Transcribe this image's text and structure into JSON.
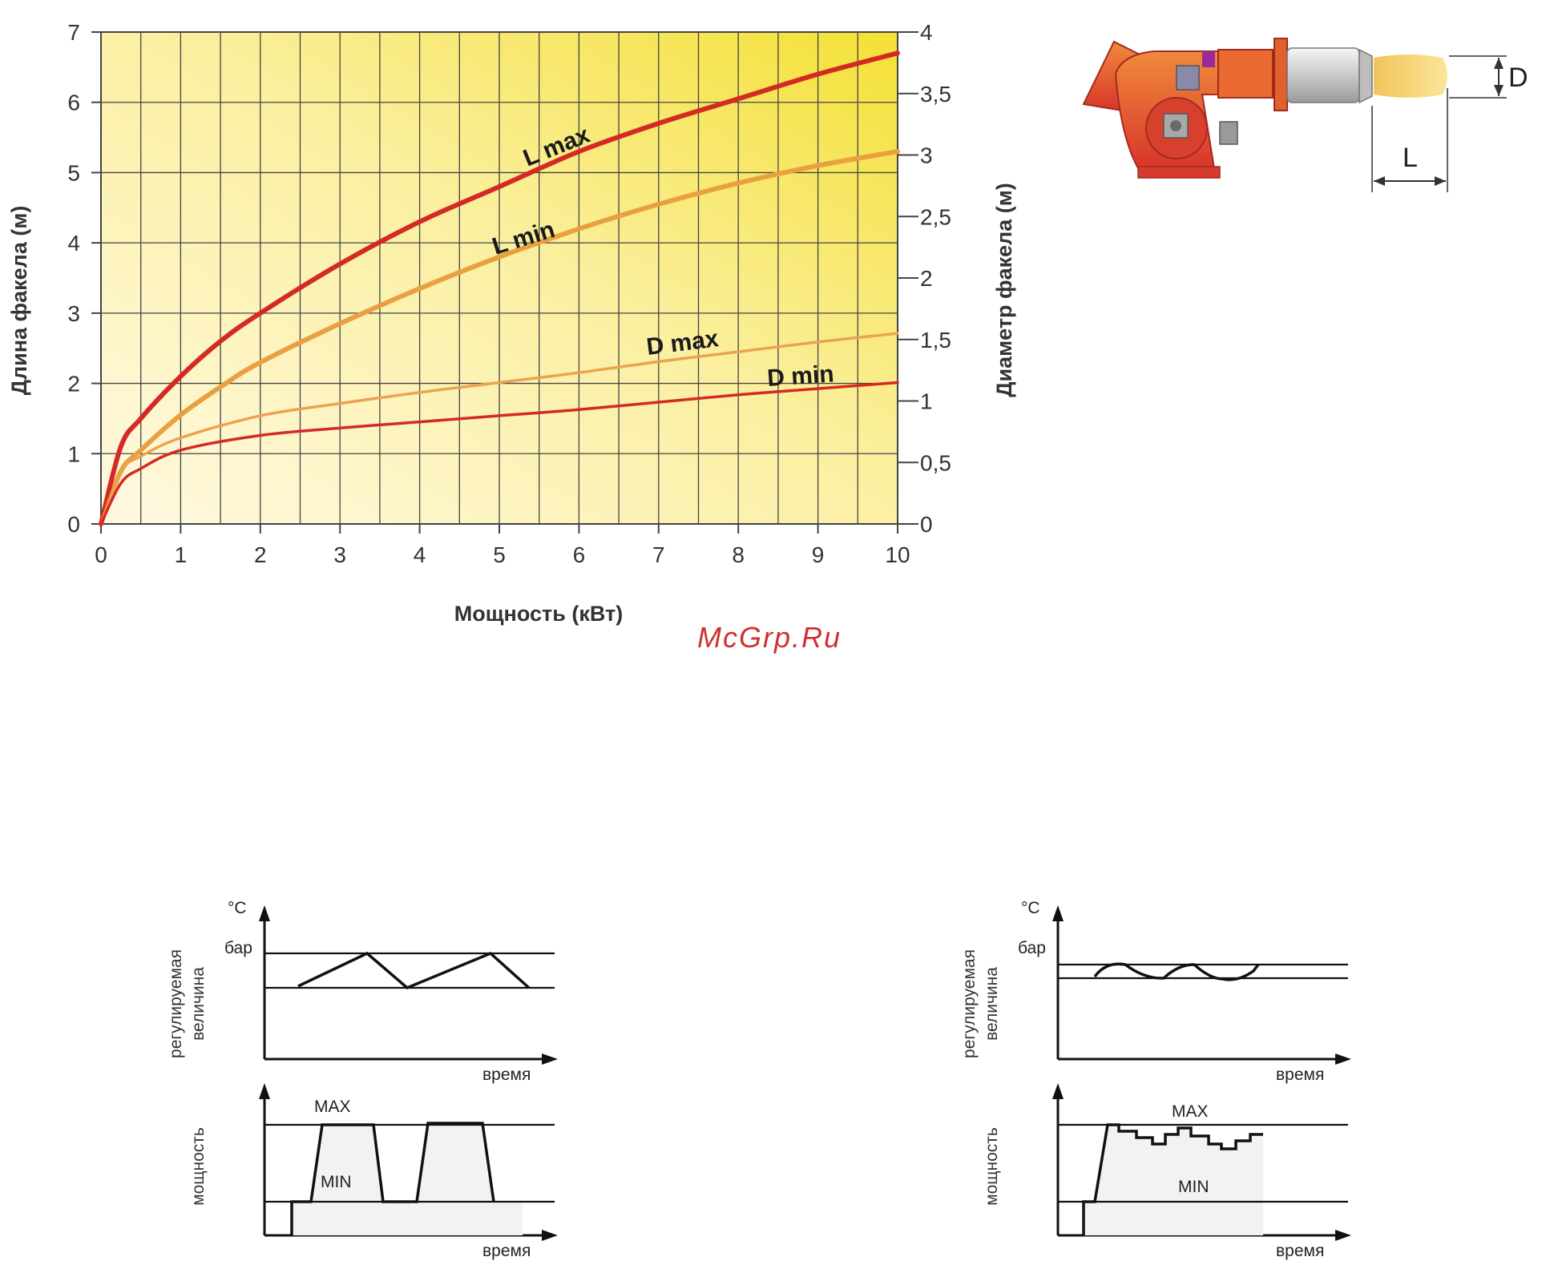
{
  "chart_data": {
    "type": "line",
    "xlabel": "Мощность (кВт)",
    "ylabel_left": "Длина факела (м)",
    "ylabel_right": "Диаметр факела (м)",
    "xlim": [
      0,
      10
    ],
    "ylim_left": [
      0,
      7
    ],
    "ylim_right": [
      0,
      4
    ],
    "x_ticks": [
      "0",
      "1",
      "2",
      "3",
      "4",
      "5",
      "6",
      "7",
      "8",
      "9",
      "10"
    ],
    "y_left_ticks": [
      "0",
      "1",
      "2",
      "3",
      "4",
      "5",
      "6",
      "7"
    ],
    "y_right_ticks": [
      "0",
      "0,5",
      "1",
      "1,5",
      "2",
      "2,5",
      "3",
      "3,5",
      "4"
    ],
    "grid": true,
    "series": [
      {
        "name": "L max",
        "axis": "left",
        "color": "#d42a24",
        "x": [
          0,
          0.25,
          0.5,
          1,
          1.5,
          2,
          3,
          4,
          5,
          6,
          7,
          8,
          9,
          10
        ],
        "y": [
          0,
          1.1,
          1.5,
          2.1,
          2.6,
          3.0,
          3.7,
          4.3,
          4.8,
          5.3,
          5.7,
          6.05,
          6.4,
          6.7
        ]
      },
      {
        "name": "L min",
        "axis": "left",
        "color": "#e9a040",
        "x": [
          0,
          0.25,
          0.5,
          1,
          1.5,
          2,
          3,
          4,
          5,
          6,
          7,
          8,
          9,
          10
        ],
        "y": [
          0,
          0.75,
          1.05,
          1.55,
          1.95,
          2.3,
          2.85,
          3.35,
          3.8,
          4.2,
          4.55,
          4.85,
          5.1,
          5.3
        ]
      },
      {
        "name": "D max",
        "axis": "right",
        "color": "#eba350",
        "x": [
          0,
          0.25,
          0.5,
          1,
          2,
          3,
          4,
          5,
          6,
          7,
          8,
          9,
          10
        ],
        "y": [
          0,
          0.43,
          0.55,
          0.7,
          0.88,
          0.98,
          1.07,
          1.15,
          1.23,
          1.32,
          1.4,
          1.48,
          1.55
        ]
      },
      {
        "name": "D min",
        "axis": "right",
        "color": "#d42a24",
        "x": [
          0,
          0.25,
          0.5,
          1,
          2,
          3,
          4,
          5,
          6,
          7,
          8,
          9,
          10
        ],
        "y": [
          0,
          0.33,
          0.45,
          0.6,
          0.72,
          0.78,
          0.83,
          0.88,
          0.93,
          0.99,
          1.05,
          1.1,
          1.15
        ]
      }
    ]
  },
  "watermark": "McGrp.Ru",
  "burner": {
    "label_d": "D",
    "label_l": "L"
  },
  "schemes": [
    {
      "unit_temp": "°C",
      "unit_bar": "бар",
      "y_label_1": "регулируемая",
      "y_label_2": "величина",
      "x_label": "время",
      "power_label": "мощность",
      "max_label": "MAX",
      "min_label": "MIN"
    },
    {
      "unit_temp": "°C",
      "unit_bar": "бар",
      "y_label_1": "регулируемая",
      "y_label_2": "величина",
      "x_label": "время",
      "power_label": "мощность",
      "max_label": "MAX",
      "min_label": "MIN"
    }
  ]
}
